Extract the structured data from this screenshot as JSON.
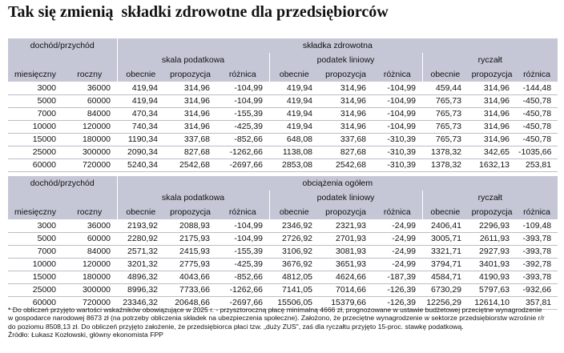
{
  "title": "Tak się zmienią  składki zdrowotne dla przedsiębiorców",
  "table1": {
    "left_header": "dochód/przychód",
    "col_monthly": "miesięczny",
    "col_yearly": "roczny",
    "group_title": "składka zdrowotna",
    "groups": [
      "skala podatkowa",
      "podatek liniowy",
      "ryczałt"
    ],
    "sub": [
      "obecnie",
      "propozycja",
      "różnica"
    ],
    "rows": [
      [
        "3000",
        "36000",
        "419,94",
        "314,96",
        "-104,99",
        "419,94",
        "314,96",
        "-104,99",
        "459,44",
        "314,96",
        "-144,48"
      ],
      [
        "5000",
        "60000",
        "419,94",
        "314,96",
        "-104,99",
        "419,94",
        "314,96",
        "-104,99",
        "765,73",
        "314,96",
        "-450,78"
      ],
      [
        "7000",
        "84000",
        "470,34",
        "314,96",
        "-155,39",
        "419,94",
        "314,96",
        "-104,99",
        "765,73",
        "314,96",
        "-450,78"
      ],
      [
        "10000",
        "120000",
        "740,34",
        "314,96",
        "-425,39",
        "419,94",
        "314,96",
        "-104,99",
        "765,73",
        "314,96",
        "-450,78"
      ],
      [
        "15000",
        "180000",
        "1190,34",
        "337,68",
        "-852,66",
        "648,08",
        "337,68",
        "-310,39",
        "765,73",
        "314,96",
        "-450,78"
      ],
      [
        "25000",
        "300000",
        "2090,34",
        "827,68",
        "-1262,66",
        "1138,08",
        "827,68",
        "-310,39",
        "1378,32",
        "342,65",
        "-1035,66"
      ],
      [
        "60000",
        "720000",
        "5240,34",
        "2542,68",
        "-2697,66",
        "2853,08",
        "2542,68",
        "-310,39",
        "1378,32",
        "1632,13",
        "253,81"
      ]
    ]
  },
  "table2": {
    "left_header": "dochód/przychód",
    "col_monthly": "miesięczny",
    "col_yearly": "roczny",
    "group_title": "obciążenia ogółem",
    "groups": [
      "skala podatkowa",
      "podatek liniowy",
      "ryczałt"
    ],
    "sub": [
      "obecnie",
      "propozycja",
      "różnica"
    ],
    "rows": [
      [
        "3000",
        "36000",
        "2193,92",
        "2088,93",
        "-104,99",
        "2346,92",
        "2321,93",
        "-24,99",
        "2406,41",
        "2296,93",
        "-109,48"
      ],
      [
        "5000",
        "60000",
        "2280,92",
        "2175,93",
        "-104,99",
        "2726,92",
        "2701,93",
        "-24,99",
        "3005,71",
        "2611,93",
        "-393,78"
      ],
      [
        "7000",
        "84000",
        "2571,32",
        "2415,93",
        "-155,39",
        "3106,92",
        "3081,93",
        "-24,99",
        "3321,71",
        "2927,93",
        "-393,78"
      ],
      [
        "10000",
        "120000",
        "3201,32",
        "2775,93",
        "-425,39",
        "3676,92",
        "3651,93",
        "-24,99",
        "3794,71",
        "3401,93",
        "-392,78"
      ],
      [
        "15000",
        "180000",
        "4896,32",
        "4043,66",
        "-852,66",
        "4812,05",
        "4624,66",
        "-187,39",
        "4584,71",
        "4190,93",
        "-393,78"
      ],
      [
        "25000",
        "300000",
        "8996,32",
        "7733,66",
        "-1262,66",
        "7141,05",
        "7014,66",
        "-126,39",
        "6730,29",
        "5797,63",
        "-932,66"
      ],
      [
        "60000",
        "720000",
        "23346,32",
        "20648,66",
        "-2697,66",
        "15506,05",
        "15379,66",
        "-126,39",
        "12256,29",
        "12614,10",
        "357,81"
      ]
    ]
  },
  "footnote": {
    "line1": "* Do obliczeń przyjęto wartości wskaźników obowiązujące w 2025 r. - przysztoroczną płacę minimalną 4666 zł, prognozowane w ustawie budżetowej przeciętne wynagrodzenie",
    "line2": "w gospodarce narodowej 8673 zł (na potrzeby obliczenia składek na ubezpieczenia społeczne). Założono, że przeciętne wynagrodzenie w sektorze przedsiębiorstw wzrośnie r/r",
    "line3": "do poziomu 8508,13 zł. Do obliczeń przyjęto założenie, że przedsiębiorca płaci tzw. „duży ZUS\", zaś dla ryczałtu przyjęto 15-proc. stawkę podatkową.",
    "source": "Źródło: Łukasz Kozłowski, główny ekonomista FPP"
  }
}
